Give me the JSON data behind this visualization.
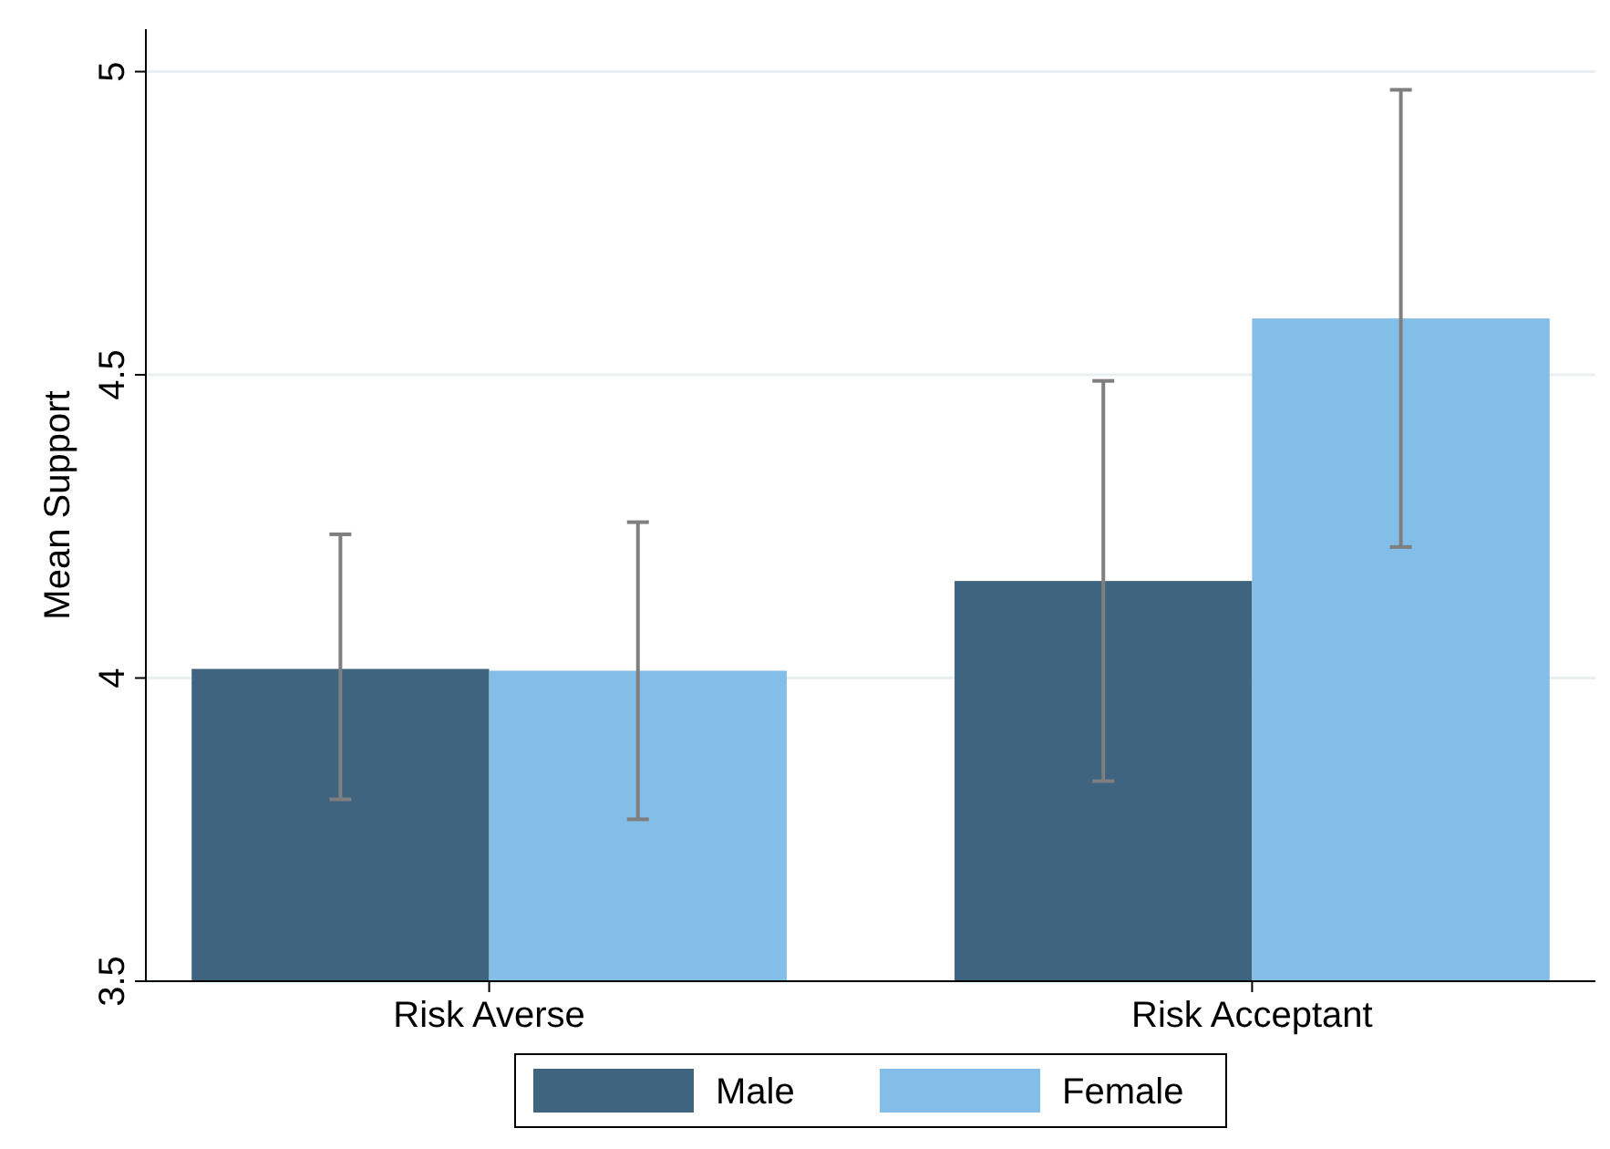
{
  "chart_data": {
    "type": "bar",
    "ylabel": "Mean Support",
    "categories": [
      "Risk Averse",
      "Risk Acceptant"
    ],
    "series": [
      {
        "name": "Male",
        "color": "#3e6480",
        "values": [
          4.015,
          4.16
        ],
        "errors": [
          [
            3.8,
            4.237
          ],
          [
            3.83,
            4.49
          ]
        ]
      },
      {
        "name": "Female",
        "color": "#82bee8",
        "values": [
          4.012,
          4.593
        ],
        "errors": [
          [
            3.767,
            4.257
          ],
          [
            4.216,
            4.97
          ]
        ]
      }
    ],
    "ylim": [
      3.5,
      5.07
    ],
    "yticks": [
      3.5,
      4,
      4.5,
      5
    ],
    "grid": "y",
    "legend": "bottom"
  }
}
